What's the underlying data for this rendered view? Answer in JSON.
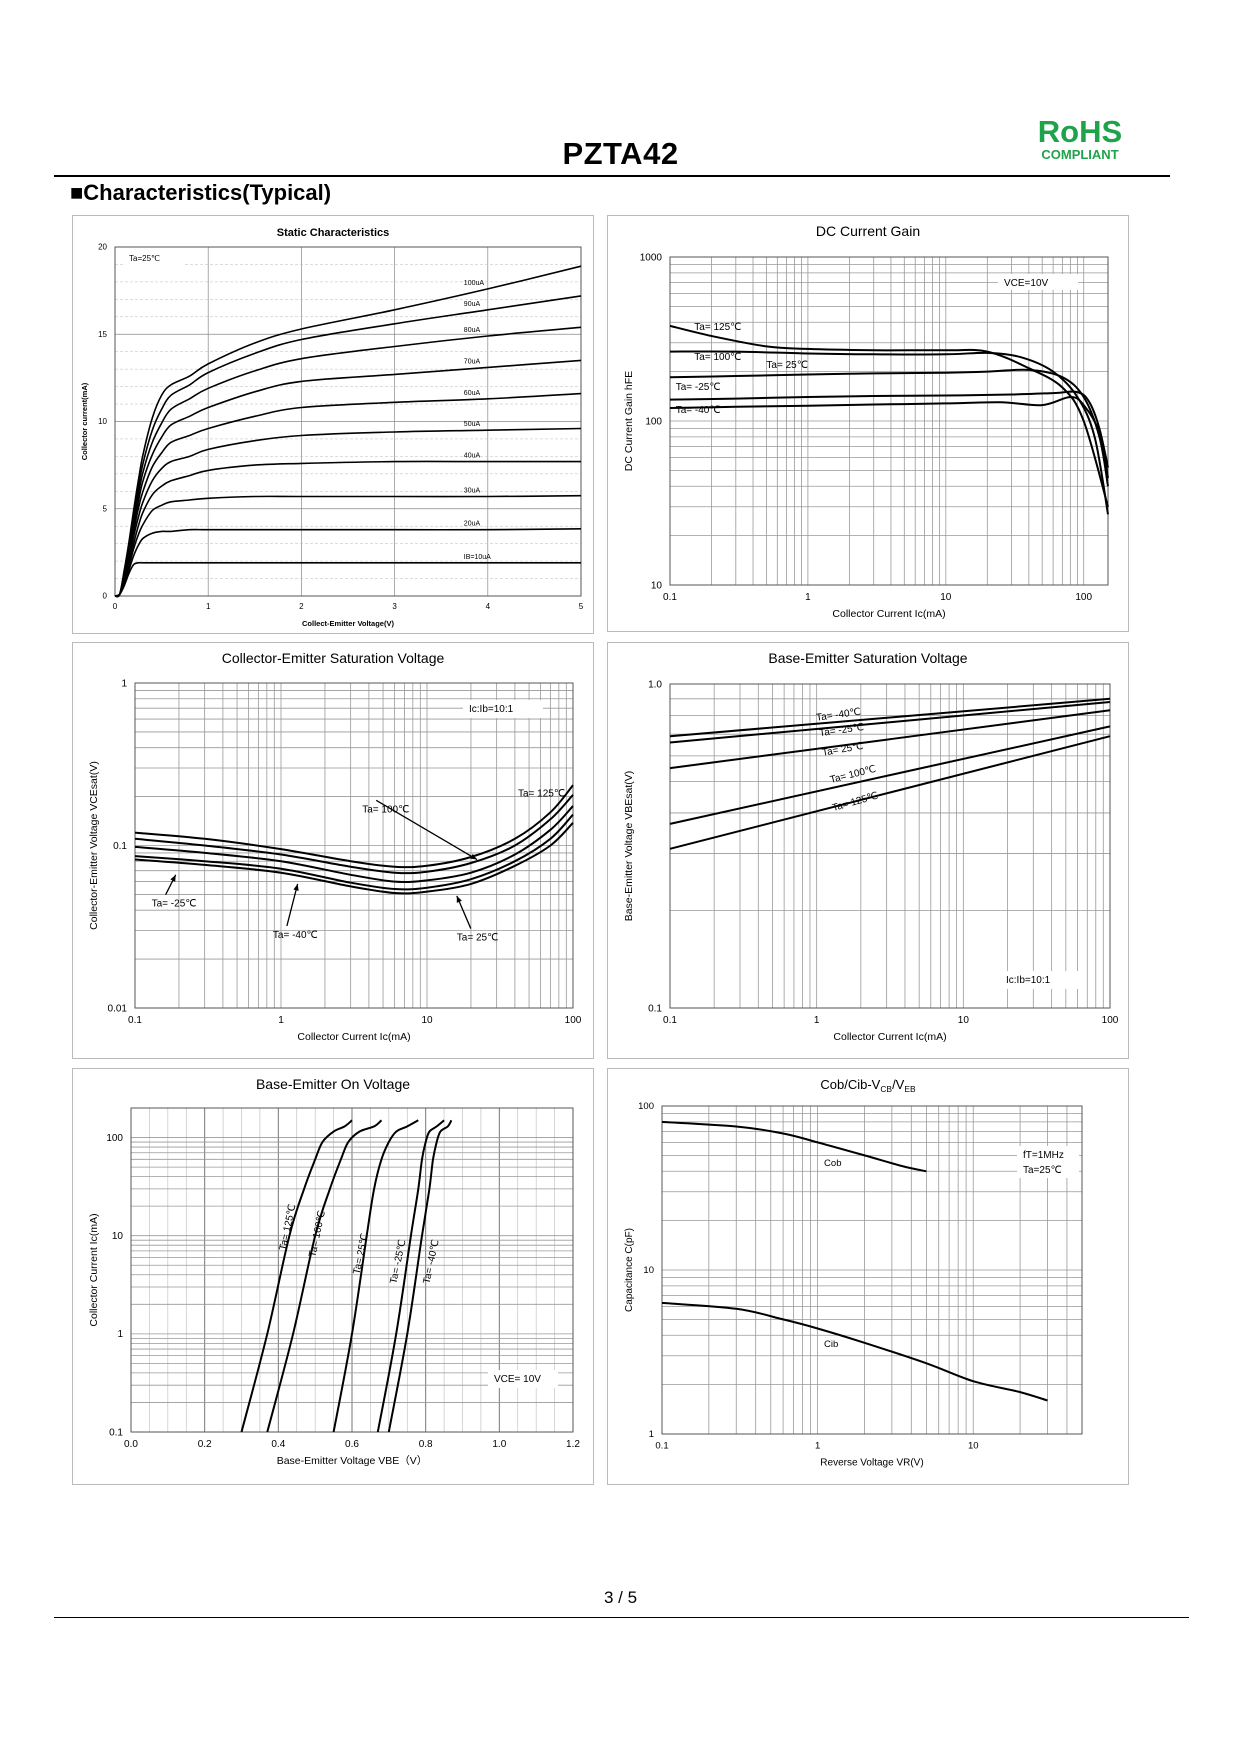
{
  "header": {
    "title": "PZTA42",
    "rohs": "RoHS",
    "compliant": "COMPLIANT"
  },
  "section_title": "■Characteristics(Typical)",
  "footer": {
    "page": "3 / 5"
  },
  "chart_data": [
    {
      "type": "line",
      "title": "Static Characteristics",
      "xlabel": "Collect-Emitter Voltage(V)",
      "ylabel": "Collector current(mA)",
      "xscale": "linear",
      "yscale": "linear",
      "xlim": [
        0,
        5
      ],
      "ylim": [
        0,
        20
      ],
      "xticks": [
        0,
        1,
        2,
        3,
        4,
        5
      ],
      "yticks": [
        0,
        5,
        10,
        15,
        20
      ],
      "annotations": [
        "Ta=25℃"
      ],
      "x": [
        0,
        0.05,
        0.1,
        0.15,
        0.2,
        0.25,
        0.3,
        0.4,
        0.5,
        0.6,
        0.8,
        1.0,
        1.5,
        2.0,
        3.0,
        4.0,
        5.0
      ],
      "series": [
        {
          "name": "IB=10uA",
          "label": "IB=10uA",
          "values": [
            0,
            0.1,
            0.6,
            1.3,
            1.8,
            1.9,
            1.9,
            1.9,
            1.9,
            1.9,
            1.9,
            1.9,
            1.9,
            1.9,
            1.9,
            1.9,
            1.9
          ]
        },
        {
          "name": "20uA",
          "label": "20uA",
          "values": [
            0,
            0.1,
            0.7,
            1.5,
            2.3,
            2.9,
            3.3,
            3.6,
            3.7,
            3.7,
            3.8,
            3.8,
            3.8,
            3.8,
            3.8,
            3.8,
            3.85
          ]
        },
        {
          "name": "30uA",
          "label": "30uA",
          "values": [
            0,
            0.1,
            0.8,
            1.7,
            2.7,
            3.5,
            4.1,
            4.9,
            5.2,
            5.4,
            5.5,
            5.6,
            5.7,
            5.7,
            5.7,
            5.7,
            5.75
          ]
        },
        {
          "name": "40uA",
          "label": "40uA",
          "values": [
            0,
            0.1,
            0.9,
            1.9,
            3.0,
            4.0,
            4.8,
            5.8,
            6.3,
            6.6,
            6.9,
            7.2,
            7.5,
            7.6,
            7.7,
            7.7,
            7.7
          ]
        },
        {
          "name": "50uA",
          "label": "50uA",
          "values": [
            0,
            0.1,
            1.0,
            2.1,
            3.4,
            4.5,
            5.4,
            6.6,
            7.3,
            7.7,
            8.0,
            8.4,
            8.9,
            9.2,
            9.4,
            9.5,
            9.6
          ]
        },
        {
          "name": "60uA",
          "label": "60uA",
          "values": [
            0,
            0.1,
            1.1,
            2.3,
            3.7,
            5.0,
            6.0,
            7.4,
            8.2,
            8.8,
            9.2,
            9.6,
            10.3,
            10.8,
            11.1,
            11.3,
            11.6
          ]
        },
        {
          "name": "70uA",
          "label": "70uA",
          "values": [
            0,
            0.1,
            1.2,
            2.5,
            4.0,
            5.4,
            6.6,
            8.1,
            9.1,
            9.8,
            10.3,
            10.8,
            11.7,
            12.3,
            12.7,
            13.1,
            13.5
          ]
        },
        {
          "name": "80uA",
          "label": "80uA",
          "values": [
            0,
            0.1,
            1.3,
            2.7,
            4.3,
            5.8,
            7.1,
            8.8,
            9.9,
            10.7,
            11.3,
            11.9,
            12.9,
            13.6,
            14.3,
            14.9,
            15.4
          ]
        },
        {
          "name": "90uA",
          "label": "90uA",
          "values": [
            0,
            0.1,
            1.4,
            2.9,
            4.6,
            6.2,
            7.6,
            9.5,
            10.7,
            11.5,
            12.1,
            12.8,
            13.9,
            14.7,
            15.6,
            16.4,
            17.2
          ]
        },
        {
          "name": "100uA",
          "label": "100uA",
          "values": [
            0,
            0.1,
            1.5,
            3.1,
            4.9,
            6.6,
            8.1,
            10.2,
            11.5,
            12.1,
            12.6,
            13.3,
            14.5,
            15.3,
            16.4,
            17.6,
            18.9
          ]
        }
      ]
    },
    {
      "type": "line",
      "title": "DC Current Gain",
      "xlabel": "Collector Current Ic(mA)",
      "ylabel": "DC Current Gain hFE",
      "xscale": "log",
      "yscale": "log",
      "xlim": [
        0.1,
        150
      ],
      "ylim": [
        10,
        1000
      ],
      "xticks": [
        0.1,
        1,
        10,
        100
      ],
      "xticklabels": [
        "0.1",
        "1",
        "10",
        "100"
      ],
      "yticks": [
        10,
        100,
        1000
      ],
      "yticklabels": [
        "10",
        "100",
        "1000"
      ],
      "annotations": [
        "VCE=10V"
      ],
      "series": [
        {
          "name": "Ta= 125℃",
          "x": [
            0.1,
            0.2,
            0.5,
            1,
            3,
            10,
            20,
            40,
            70,
            100,
            150
          ],
          "values": [
            380,
            330,
            285,
            275,
            270,
            270,
            265,
            210,
            160,
            100,
            30
          ]
        },
        {
          "name": "Ta= 100℃",
          "x": [
            0.1,
            0.3,
            1,
            3,
            10,
            20,
            35,
            60,
            90,
            120,
            150
          ],
          "values": [
            265,
            265,
            258,
            255,
            255,
            260,
            245,
            200,
            140,
            80,
            27
          ]
        },
        {
          "name": "Ta= 25℃",
          "x": [
            0.1,
            0.3,
            1,
            3,
            10,
            20,
            40,
            70,
            100,
            130,
            150
          ],
          "values": [
            185,
            188,
            192,
            195,
            197,
            200,
            205,
            185,
            140,
            80,
            40
          ]
        },
        {
          "name": "Ta= -25℃",
          "x": [
            0.1,
            0.3,
            1,
            3,
            10,
            30,
            60,
            90,
            110,
            130,
            150
          ],
          "values": [
            135,
            137,
            140,
            142,
            143,
            145,
            148,
            150,
            130,
            90,
            52
          ]
        },
        {
          "name": "Ta= -40℃",
          "x": [
            0.1,
            0.3,
            1,
            3,
            10,
            25,
            50,
            80,
            100,
            130,
            150
          ],
          "values": [
            120,
            122,
            124,
            126,
            128,
            130,
            125,
            140,
            125,
            85,
            45
          ]
        }
      ],
      "labels": [
        {
          "text": "Ta= 125℃",
          "x": 0.15,
          "y": 360
        },
        {
          "text": "Ta= 100℃",
          "x": 0.15,
          "y": 235
        },
        {
          "text": "Ta= 25℃",
          "x": 0.5,
          "y": 210
        },
        {
          "text": "Ta= -25℃",
          "x": 0.11,
          "y": 155
        },
        {
          "text": "Ta= -40℃",
          "x": 0.11,
          "y": 112
        }
      ]
    },
    {
      "type": "line",
      "title": "Collector-Emitter Saturation Voltage",
      "xlabel": "Collector Current Ic(mA)",
      "ylabel": "Collector-Emitter Voltage VCEsat(V)",
      "xscale": "log",
      "yscale": "log",
      "xlim": [
        0.1,
        100
      ],
      "ylim": [
        0.01,
        1
      ],
      "xticks": [
        0.1,
        1,
        10,
        100
      ],
      "xticklabels": [
        "0.1",
        "1",
        "10",
        "100"
      ],
      "yticks": [
        0.01,
        0.1,
        1
      ],
      "yticklabels": [
        "0.01",
        "0.1",
        "1"
      ],
      "annotations": [
        "Ic:Ib=10:1"
      ],
      "series": [
        {
          "name": "Ta= 125℃",
          "x": [
            0.1,
            0.3,
            1,
            3,
            6,
            10,
            20,
            40,
            70,
            100
          ],
          "values": [
            0.12,
            0.11,
            0.095,
            0.08,
            0.074,
            0.075,
            0.085,
            0.11,
            0.16,
            0.235
          ]
        },
        {
          "name": "Ta= 100℃",
          "x": [
            0.1,
            0.3,
            1,
            3,
            6,
            10,
            20,
            40,
            70,
            100
          ],
          "values": [
            0.11,
            0.1,
            0.088,
            0.074,
            0.068,
            0.069,
            0.078,
            0.1,
            0.145,
            0.205
          ]
        },
        {
          "name": "Ta= -25℃",
          "x": [
            0.1,
            0.3,
            1,
            3,
            6,
            10,
            20,
            40,
            70,
            100
          ],
          "values": [
            0.098,
            0.09,
            0.08,
            0.066,
            0.06,
            0.061,
            0.068,
            0.088,
            0.125,
            0.175
          ]
        },
        {
          "name": "Ta= -40℃",
          "x": [
            0.1,
            0.3,
            1,
            3,
            6,
            10,
            20,
            40,
            70,
            100
          ],
          "values": [
            0.086,
            0.08,
            0.072,
            0.059,
            0.054,
            0.055,
            0.062,
            0.08,
            0.11,
            0.155
          ]
        },
        {
          "name": "Ta= 25℃",
          "x": [
            0.1,
            0.3,
            1,
            3,
            6,
            10,
            20,
            40,
            70,
            100
          ],
          "values": [
            0.082,
            0.076,
            0.068,
            0.056,
            0.051,
            0.052,
            0.058,
            0.075,
            0.1,
            0.138
          ]
        }
      ],
      "labels": [
        {
          "text": "Ta= 125℃",
          "x": 42,
          "y": 0.2,
          "ax": 70,
          "ay": 0.19,
          "arrow": false
        },
        {
          "text": "Ta= 100℃",
          "x": 3.6,
          "y": 0.16,
          "ax": 22,
          "ay": 0.082,
          "arrow": true
        },
        {
          "text": "Ta= -25℃",
          "x": 0.13,
          "y": 0.042,
          "ax": 0.19,
          "ay": 0.066,
          "arrow": true
        },
        {
          "text": "Ta= -40℃",
          "x": 0.88,
          "y": 0.027,
          "ax": 1.3,
          "ay": 0.058,
          "arrow": true
        },
        {
          "text": "Ta= 25℃",
          "x": 16,
          "y": 0.026,
          "ax": 16,
          "ay": 0.049,
          "arrow": true
        }
      ]
    },
    {
      "type": "line",
      "title": "Base-Emitter Saturation Voltage",
      "xlabel": "Collector Current Ic(mA)",
      "ylabel": "Base-Emitter Voltage VBEsat(V)",
      "xscale": "log",
      "yscale": "log",
      "xlim": [
        0.1,
        100
      ],
      "ylim": [
        0.1,
        1.0
      ],
      "xticks": [
        0.1,
        1,
        10,
        100
      ],
      "xticklabels": [
        "0.1",
        "1",
        "10",
        "100"
      ],
      "yticks": [
        0.1,
        1.0
      ],
      "yticklabels": [
        "0.1",
        "1.0"
      ],
      "annotations": [
        "Ic:Ib=10:1"
      ],
      "series": [
        {
          "name": "Ta= -40℃",
          "x": [
            0.1,
            100
          ],
          "values": [
            0.69,
            0.9
          ]
        },
        {
          "name": "Ta= -25℃",
          "x": [
            0.1,
            100
          ],
          "values": [
            0.66,
            0.88
          ]
        },
        {
          "name": "Ta= 25℃",
          "x": [
            0.1,
            100
          ],
          "values": [
            0.55,
            0.83
          ]
        },
        {
          "name": "Ta= 100℃",
          "x": [
            0.1,
            100
          ],
          "values": [
            0.37,
            0.74
          ]
        },
        {
          "name": "Ta= 125℃",
          "x": [
            0.1,
            100
          ],
          "values": [
            0.31,
            0.69
          ]
        }
      ],
      "labels": [
        {
          "text": "Ta= -40℃",
          "x": 1.0,
          "y": 0.77,
          "rot": -8
        },
        {
          "text": "Ta= -25℃",
          "x": 1.05,
          "y": 0.69,
          "rot": -8
        },
        {
          "text": "Ta= 25℃",
          "x": 1.1,
          "y": 0.6,
          "rot": -10
        },
        {
          "text": "Ta= 100℃",
          "x": 1.25,
          "y": 0.495,
          "rot": -14
        },
        {
          "text": "Ta= 125℃",
          "x": 1.3,
          "y": 0.405,
          "rot": -16
        }
      ]
    },
    {
      "type": "line",
      "title": "Base-Emitter On Voltage",
      "xlabel": "Base-Emitter Voltage VBE（V）",
      "ylabel": "Collector Current Ic(mA)",
      "xscale": "linear",
      "yscale": "log",
      "xlim": [
        0.0,
        1.2
      ],
      "ylim": [
        0.1,
        200
      ],
      "xticks": [
        0.0,
        0.2,
        0.4,
        0.6,
        0.8,
        1.0,
        1.2
      ],
      "xticklabels": [
        "0.0",
        "0.2",
        "0.4",
        "0.6",
        "0.8",
        "1.0",
        "1.2"
      ],
      "yticks": [
        0.1,
        1,
        10,
        100
      ],
      "yticklabels": [
        "0.1",
        "1",
        "10",
        "100"
      ],
      "annotations": [
        "VCE= 10V"
      ],
      "series": [
        {
          "name": "Ta= 125℃",
          "x": [
            0.3,
            0.37,
            0.43,
            0.47,
            0.5,
            0.52,
            0.55,
            0.58,
            0.6
          ],
          "values": [
            0.1,
            1,
            10,
            30,
            60,
            90,
            115,
            130,
            150
          ]
        },
        {
          "name": "Ta= 100℃",
          "x": [
            0.37,
            0.44,
            0.5,
            0.54,
            0.57,
            0.59,
            0.62,
            0.66,
            0.68
          ],
          "values": [
            0.1,
            1,
            10,
            30,
            60,
            90,
            115,
            130,
            150
          ]
        },
        {
          "name": "Ta= 25℃",
          "x": [
            0.55,
            0.6,
            0.64,
            0.66,
            0.68,
            0.7,
            0.72,
            0.75,
            0.78
          ],
          "values": [
            0.1,
            1,
            10,
            30,
            60,
            90,
            115,
            130,
            150
          ]
        },
        {
          "name": "Ta= -25℃",
          "x": [
            0.67,
            0.72,
            0.76,
            0.78,
            0.79,
            0.8,
            0.81,
            0.83,
            0.85
          ],
          "values": [
            0.1,
            1,
            10,
            30,
            60,
            90,
            115,
            130,
            150
          ]
        },
        {
          "name": "Ta= -40℃",
          "x": [
            0.7,
            0.75,
            0.79,
            0.81,
            0.82,
            0.83,
            0.84,
            0.86,
            0.87
          ],
          "values": [
            0.1,
            1,
            10,
            30,
            60,
            90,
            115,
            130,
            150
          ]
        }
      ],
      "labels": [
        {
          "text": "Ta= 125℃",
          "x": 0.42,
          "y": 7
        },
        {
          "text": "Ta= 100℃",
          "x": 0.5,
          "y": 6
        },
        {
          "text": "Ta= 25℃",
          "x": 0.62,
          "y": 4
        },
        {
          "text": "Ta= -25℃",
          "x": 0.72,
          "y": 3.2
        },
        {
          "text": "Ta= -40℃",
          "x": 0.81,
          "y": 3.2
        }
      ]
    },
    {
      "type": "line",
      "title": "Cob/Cib-VCB/VEB",
      "xlabel": "Reverse Voltage VR(V)",
      "ylabel": "Capacitance C(pF)",
      "xscale": "log",
      "yscale": "log",
      "xlim": [
        0.1,
        50
      ],
      "ylim": [
        1,
        100
      ],
      "xticks": [
        0.1,
        1,
        10
      ],
      "xticklabels": [
        "0.1",
        "1",
        "10"
      ],
      "yticks": [
        1,
        10,
        100
      ],
      "yticklabels": [
        "1",
        "10",
        "100"
      ],
      "annotations": [
        "fT=1MHz",
        "Ta=25℃"
      ],
      "series": [
        {
          "name": "Cob",
          "x": [
            0.1,
            0.3,
            0.6,
            1,
            2,
            3.5,
            5
          ],
          "values": [
            80,
            75,
            68,
            60,
            50,
            43,
            40
          ]
        },
        {
          "name": "Cib",
          "x": [
            0.1,
            0.3,
            0.6,
            1,
            2,
            5,
            10,
            20,
            30
          ],
          "values": [
            6.3,
            5.8,
            5.0,
            4.4,
            3.6,
            2.7,
            2.1,
            1.8,
            1.6
          ]
        }
      ],
      "labels": [
        {
          "text": "Cob",
          "x": 1.1,
          "y": 43
        },
        {
          "text": "Cib",
          "x": 1.1,
          "y": 3.4
        }
      ]
    }
  ]
}
